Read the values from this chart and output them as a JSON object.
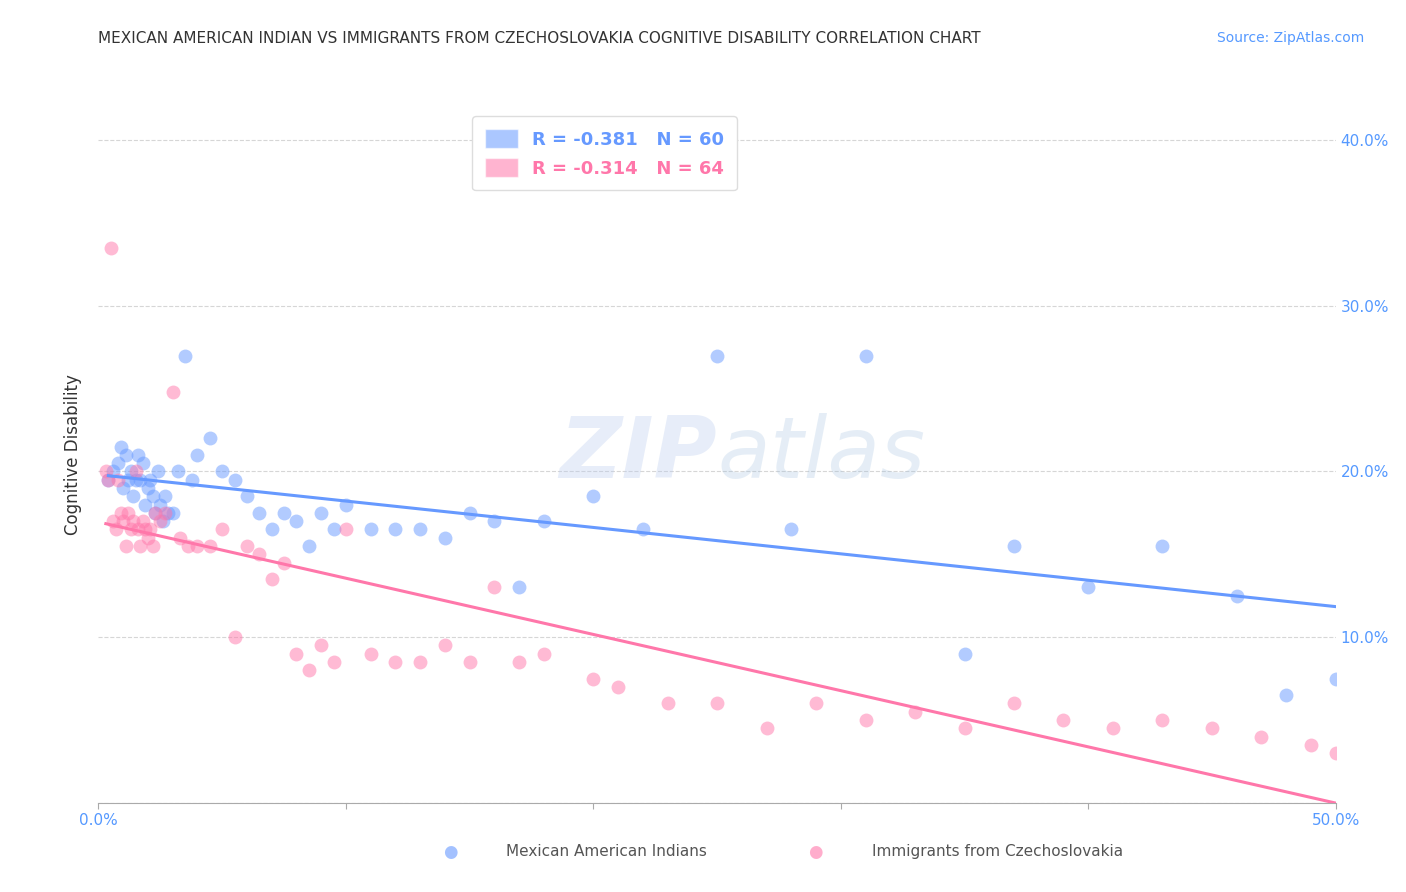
{
  "title": "MEXICAN AMERICAN INDIAN VS IMMIGRANTS FROM CZECHOSLOVAKIA COGNITIVE DISABILITY CORRELATION CHART",
  "source": "Source: ZipAtlas.com",
  "ylabel": "Cognitive Disability",
  "xlim": [
    0.0,
    0.5
  ],
  "ylim": [
    0.0,
    0.42
  ],
  "xticks": [
    0.0,
    0.1,
    0.2,
    0.3,
    0.4,
    0.5
  ],
  "xtick_labels": [
    "0.0%",
    "",
    "",
    "",
    "",
    "50.0%"
  ],
  "yticks": [
    0.0,
    0.1,
    0.2,
    0.3,
    0.4
  ],
  "right_ytick_labels": [
    "10.0%",
    "20.0%",
    "30.0%",
    "40.0%"
  ],
  "right_ytick_positions": [
    0.1,
    0.2,
    0.3,
    0.4
  ],
  "legend_r1": "R = -0.381",
  "legend_n1": "N = 60",
  "legend_r2": "R = -0.314",
  "legend_n2": "N = 64",
  "legend_label1": "Mexican American Indians",
  "legend_label2": "Immigrants from Czechoslovakia",
  "blue_color": "#6699ff",
  "pink_color": "#ff77aa",
  "watermark_zip": "ZIP",
  "watermark_atlas": "atlas",
  "blue_scatter_x": [
    0.004,
    0.006,
    0.008,
    0.009,
    0.01,
    0.011,
    0.012,
    0.013,
    0.014,
    0.015,
    0.016,
    0.017,
    0.018,
    0.019,
    0.02,
    0.021,
    0.022,
    0.023,
    0.024,
    0.025,
    0.026,
    0.027,
    0.028,
    0.03,
    0.032,
    0.035,
    0.038,
    0.04,
    0.045,
    0.05,
    0.055,
    0.06,
    0.065,
    0.07,
    0.075,
    0.08,
    0.085,
    0.09,
    0.095,
    0.1,
    0.11,
    0.12,
    0.13,
    0.14,
    0.15,
    0.16,
    0.17,
    0.18,
    0.2,
    0.22,
    0.25,
    0.28,
    0.31,
    0.35,
    0.37,
    0.4,
    0.43,
    0.46,
    0.48,
    0.5
  ],
  "blue_scatter_y": [
    0.195,
    0.2,
    0.205,
    0.215,
    0.19,
    0.21,
    0.195,
    0.2,
    0.185,
    0.195,
    0.21,
    0.195,
    0.205,
    0.18,
    0.19,
    0.195,
    0.185,
    0.175,
    0.2,
    0.18,
    0.17,
    0.185,
    0.175,
    0.175,
    0.2,
    0.27,
    0.195,
    0.21,
    0.22,
    0.2,
    0.195,
    0.185,
    0.175,
    0.165,
    0.175,
    0.17,
    0.155,
    0.175,
    0.165,
    0.18,
    0.165,
    0.165,
    0.165,
    0.16,
    0.175,
    0.17,
    0.13,
    0.17,
    0.185,
    0.165,
    0.27,
    0.165,
    0.27,
    0.09,
    0.155,
    0.13,
    0.155,
    0.125,
    0.065,
    0.075
  ],
  "pink_scatter_x": [
    0.003,
    0.004,
    0.005,
    0.006,
    0.007,
    0.008,
    0.009,
    0.01,
    0.011,
    0.012,
    0.013,
    0.014,
    0.015,
    0.016,
    0.017,
    0.018,
    0.019,
    0.02,
    0.021,
    0.022,
    0.023,
    0.025,
    0.027,
    0.03,
    0.033,
    0.036,
    0.04,
    0.045,
    0.05,
    0.055,
    0.06,
    0.065,
    0.07,
    0.075,
    0.08,
    0.085,
    0.09,
    0.095,
    0.1,
    0.11,
    0.12,
    0.13,
    0.14,
    0.15,
    0.16,
    0.17,
    0.18,
    0.2,
    0.21,
    0.23,
    0.25,
    0.27,
    0.29,
    0.31,
    0.33,
    0.35,
    0.37,
    0.39,
    0.41,
    0.43,
    0.45,
    0.47,
    0.49,
    0.5
  ],
  "pink_scatter_y": [
    0.2,
    0.195,
    0.335,
    0.17,
    0.165,
    0.195,
    0.175,
    0.17,
    0.155,
    0.175,
    0.165,
    0.17,
    0.2,
    0.165,
    0.155,
    0.17,
    0.165,
    0.16,
    0.165,
    0.155,
    0.175,
    0.17,
    0.175,
    0.248,
    0.16,
    0.155,
    0.155,
    0.155,
    0.165,
    0.1,
    0.155,
    0.15,
    0.135,
    0.145,
    0.09,
    0.08,
    0.095,
    0.085,
    0.165,
    0.09,
    0.085,
    0.085,
    0.095,
    0.085,
    0.13,
    0.085,
    0.09,
    0.075,
    0.07,
    0.06,
    0.06,
    0.045,
    0.06,
    0.05,
    0.055,
    0.045,
    0.06,
    0.05,
    0.045,
    0.05,
    0.045,
    0.04,
    0.035,
    0.03
  ]
}
